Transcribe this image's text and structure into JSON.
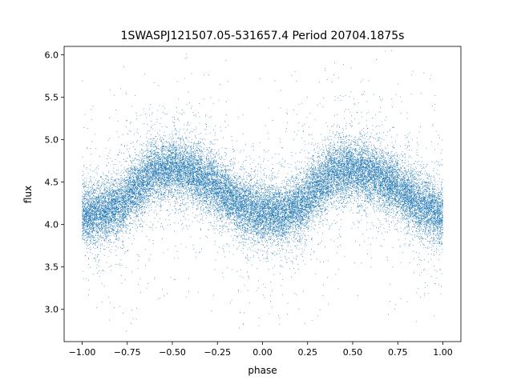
{
  "chart_data": {
    "type": "scatter",
    "title": "1SWASPJ121507.05-531657.4 Period 20704.1875s",
    "xlabel": "phase",
    "ylabel": "flux",
    "xlim": [
      -1.1,
      1.1
    ],
    "ylim": [
      2.62,
      6.1
    ],
    "xticks": [
      -1.0,
      -0.75,
      -0.5,
      -0.25,
      0.0,
      0.25,
      0.5,
      0.75,
      1.0
    ],
    "xtick_labels": [
      "−1.00",
      "−0.75",
      "−0.50",
      "−0.25",
      "0.00",
      "0.25",
      "0.50",
      "0.75",
      "1.00"
    ],
    "yticks": [
      3.0,
      3.5,
      4.0,
      4.5,
      5.0,
      5.5,
      6.0
    ],
    "ytick_labels": [
      "3.0",
      "3.5",
      "4.0",
      "4.5",
      "5.0",
      "5.5",
      "6.0"
    ],
    "grid": false,
    "legend": "none",
    "marker_color": "#1f77b4",
    "phase_range": [
      -1.0,
      1.0
    ],
    "folded_curve": {
      "phase": [
        0.0,
        0.1,
        0.2,
        0.3,
        0.4,
        0.5,
        0.6,
        0.7,
        0.8,
        0.9,
        1.0
      ],
      "flux": [
        4.12,
        4.13,
        4.22,
        4.42,
        4.62,
        4.66,
        4.6,
        4.5,
        4.36,
        4.2,
        4.12
      ]
    },
    "core_scatter_sd": 0.17,
    "point_count": 26000
  }
}
